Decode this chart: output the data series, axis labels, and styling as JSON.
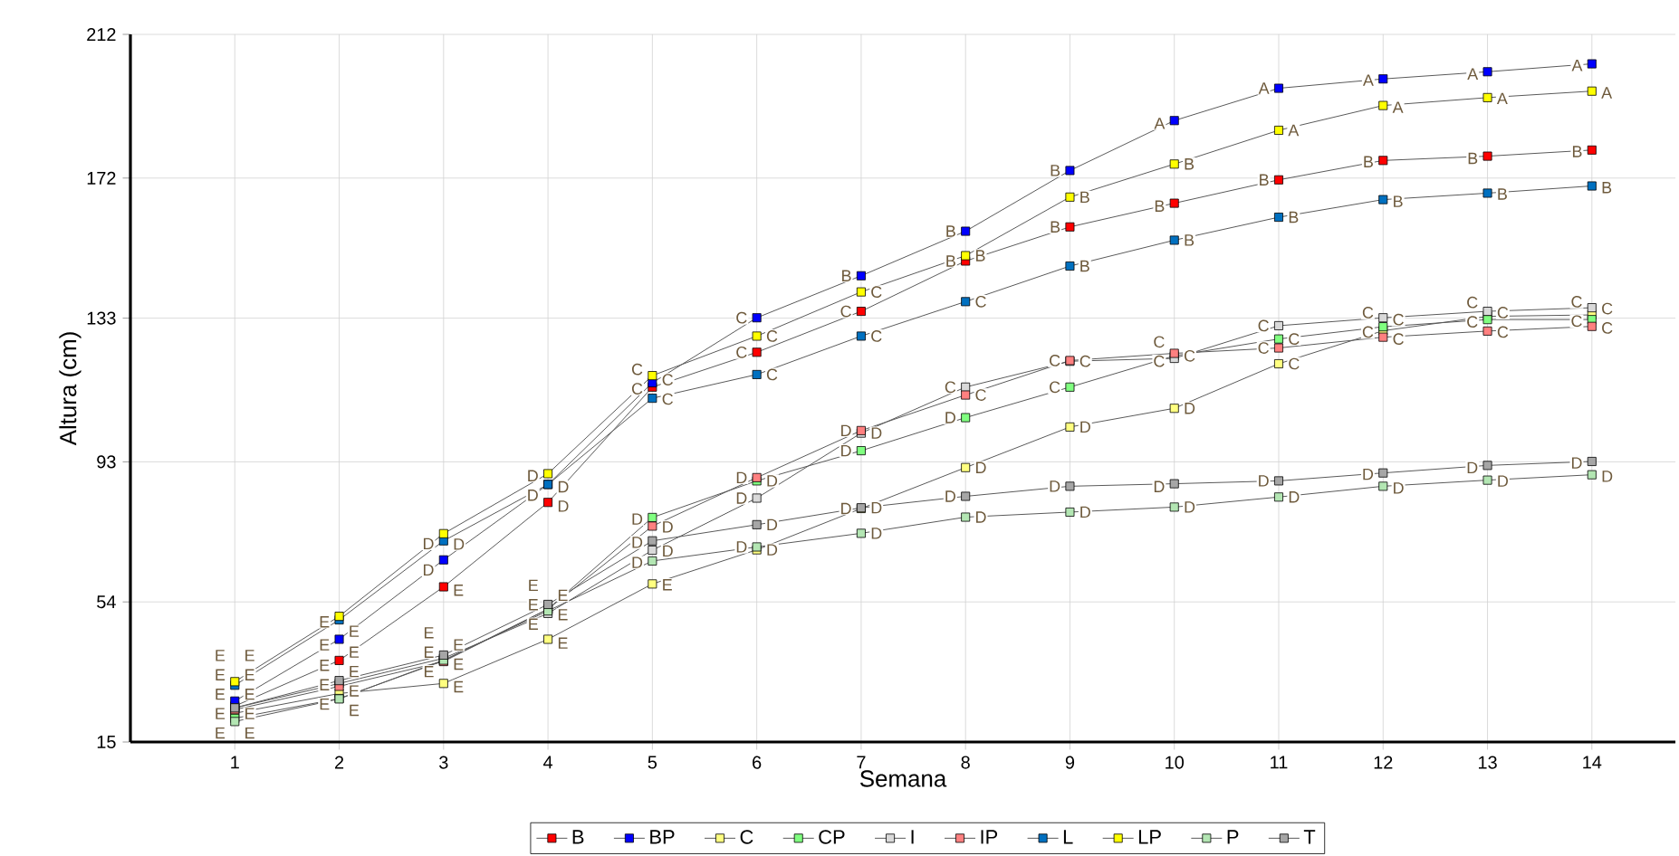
{
  "chart_data": {
    "type": "line",
    "xlabel": "Semana",
    "ylabel": "Altura (cm)",
    "x": [
      1,
      2,
      3,
      4,
      5,
      6,
      7,
      8,
      9,
      10,
      11,
      12,
      13,
      14
    ],
    "xlim": [
      0,
      14.8
    ],
    "xticks": [
      1,
      2,
      3,
      4,
      5,
      6,
      7,
      8,
      9,
      10,
      11,
      12,
      13,
      14
    ],
    "ylim": [
      15,
      212
    ],
    "yticks": [
      15,
      54,
      93,
      133,
      172,
      212
    ],
    "grid": true,
    "legend": "bottom",
    "marker": "square",
    "line_style": "solid",
    "series": [
      {
        "name": "B",
        "color": "#ff0000",
        "values": [
          25,
          37.7,
          58.2,
          81.7,
          113.8,
          123.5,
          134.9,
          148.9,
          158.4,
          165,
          171.5,
          176.9,
          178.1,
          179.8
        ],
        "value_labels": [
          "E",
          "E",
          "E",
          "D",
          "C",
          "C",
          "C",
          "B",
          "B",
          "B",
          "B",
          "B",
          "B",
          "B"
        ]
      },
      {
        "name": "BP",
        "color": "#0000ff",
        "values": [
          26.4,
          43.6,
          65.7,
          86.7,
          115,
          133.1,
          144.8,
          157.2,
          174.1,
          188,
          197,
          199.6,
          201.6,
          203.8
        ],
        "value_labels": [
          "E",
          "E",
          "D",
          "D",
          "C",
          "C",
          "B",
          "B",
          "B",
          "A",
          "A",
          "A",
          "A",
          "A"
        ]
      },
      {
        "name": "C",
        "color": "#ffff80",
        "values": [
          23,
          28.5,
          31.3,
          43.6,
          59,
          68.5,
          80,
          91.4,
          102.7,
          107.9,
          120.3,
          129.5,
          133.5,
          133.9
        ],
        "value_labels": [
          "E",
          "E",
          "E",
          "E",
          "E",
          "D",
          "D",
          "D",
          "D",
          "D",
          "C",
          "C",
          "C",
          "C"
        ]
      },
      {
        "name": "CP",
        "color": "#80ff80",
        "values": [
          21.6,
          27.1,
          37.6,
          52,
          77.5,
          87.7,
          96.1,
          105.3,
          113.8,
          122.5,
          127.2,
          130.6,
          132.6,
          132.6
        ],
        "value_labels": [
          "E",
          "E",
          "E",
          "E",
          "D",
          "D",
          "D",
          "D",
          "C",
          "C",
          "C",
          "C",
          "C",
          "C"
        ]
      },
      {
        "name": "I",
        "color": "#d9d9d9",
        "values": [
          24.5,
          31.3,
          38.3,
          50.8,
          68.4,
          82.9,
          101,
          113.8,
          121,
          121.8,
          130.9,
          133.1,
          134.9,
          135.9
        ],
        "value_labels": [
          "E",
          "E",
          "E",
          "E",
          "D",
          "D",
          "D",
          "C",
          "C",
          "C",
          "C",
          "C",
          "C",
          "C"
        ]
      },
      {
        "name": "IP",
        "color": "#ff8080",
        "values": [
          24,
          30.5,
          37.4,
          52,
          75.1,
          88.6,
          101.7,
          111.6,
          121.2,
          123.2,
          124.7,
          127.7,
          129.4,
          130.7
        ],
        "value_labels": [
          "E",
          "E",
          "E",
          "E",
          "D",
          "D",
          "D",
          "C",
          "C",
          "C",
          "C",
          "C",
          "C",
          "C"
        ]
      },
      {
        "name": "L",
        "color": "#0070c0",
        "values": [
          30.8,
          49,
          71,
          86.7,
          110.7,
          117.3,
          128,
          137.6,
          147.5,
          154.7,
          161.1,
          166,
          167.8,
          169.8
        ],
        "value_labels": [
          "E",
          "E",
          "D",
          "D",
          "C",
          "C",
          "C",
          "C",
          "B",
          "B",
          "B",
          "B",
          "B",
          "B"
        ]
      },
      {
        "name": "LP",
        "color": "#ffff00",
        "values": [
          31.8,
          50,
          73,
          89.7,
          117,
          128,
          140.3,
          150.4,
          166.7,
          175.9,
          185.3,
          192.2,
          194.4,
          196.2
        ],
        "value_labels": [
          "E",
          "E",
          "D",
          "D",
          "C",
          "C",
          "C",
          "B",
          "B",
          "B",
          "A",
          "A",
          "A",
          "A"
        ]
      },
      {
        "name": "P",
        "color": "#b3e6b3",
        "values": [
          20.7,
          27,
          37.8,
          51.5,
          65.4,
          69.3,
          73.1,
          77.6,
          79,
          80.4,
          83.2,
          86.2,
          87.9,
          89.4
        ],
        "value_labels": [
          "E",
          "E",
          "E",
          "E",
          "D",
          "D",
          "D",
          "D",
          "D",
          "D",
          "D",
          "D",
          "D",
          "D"
        ]
      },
      {
        "name": "T",
        "color": "#a6a6a6",
        "values": [
          24.5,
          32.1,
          39.2,
          53.3,
          71,
          75.5,
          80.2,
          83.4,
          86.2,
          86.9,
          87.7,
          89.9,
          92,
          93.1
        ],
        "value_labels": [
          "E",
          "E",
          "E",
          "E",
          "D",
          "D",
          "D",
          "D",
          "D",
          "D",
          "D",
          "D",
          "D",
          "D"
        ]
      }
    ]
  }
}
